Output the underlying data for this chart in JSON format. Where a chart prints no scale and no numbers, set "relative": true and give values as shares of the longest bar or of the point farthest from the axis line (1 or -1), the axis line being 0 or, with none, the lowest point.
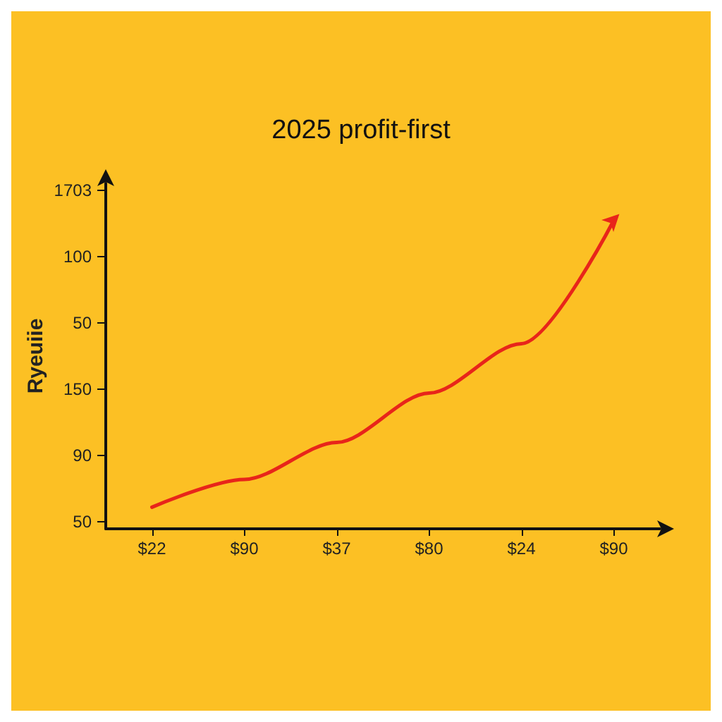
{
  "chart_data": {
    "type": "line",
    "title": "2025 profit-first",
    "ylabel": "Ryeuiie",
    "categories": [
      "$22",
      "$90",
      "$37",
      "$80",
      "$24",
      "$90"
    ],
    "series": [
      {
        "color": "#e8251a",
        "values": [
          0.07,
          0.16,
          0.28,
          0.44,
          0.6,
          1
        ]
      }
    ],
    "relative": true,
    "annotations": [
      "1703",
      "100",
      "50",
      "150",
      "90",
      "50"
    ],
    "grid": false,
    "marker": "none",
    "line_style": "solid"
  }
}
